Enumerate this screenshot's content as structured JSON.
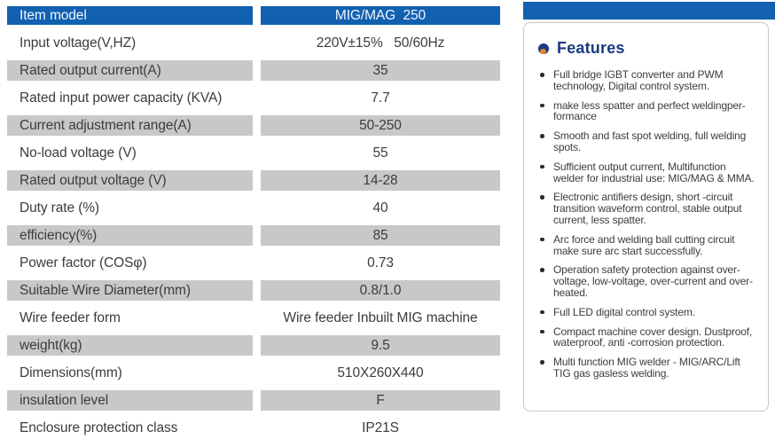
{
  "colors": {
    "header_blue": "#1161b0",
    "row_gray": "#c8c8c8",
    "feature_heading_navy": "#1a3a7f",
    "feature_icon_orange": "#e0862a",
    "text": "#3c3c3c"
  },
  "table": {
    "rows": [
      {
        "label": "Item model",
        "value": "MIG/MAG  250",
        "header": true
      },
      {
        "label": "Input voltage(V,HZ)",
        "value": "220V±15%   50/60Hz"
      },
      {
        "label": "Rated output current(A)",
        "value": "35"
      },
      {
        "label": "Rated input power capacity (KVA)",
        "value": "7.7"
      },
      {
        "label": "Current adjustment range(A)",
        "value": "50-250"
      },
      {
        "label": "No-load voltage (V)",
        "value": "55"
      },
      {
        "label": "Rated output voltage (V)",
        "value": "14-28"
      },
      {
        "label": "Duty rate (%)",
        "value": "40"
      },
      {
        "label": "efficiency(%)",
        "value": "85"
      },
      {
        "label": "Power factor (COSφ)",
        "value": "0.73"
      },
      {
        "label": "Suitable Wire Diameter(mm)",
        "value": "0.8/1.0"
      },
      {
        "label": "Wire feeder form",
        "value": "Wire feeder Inbuilt MIG machine"
      },
      {
        "label": "weight(kg)",
        "value": "9.5"
      },
      {
        "label": "Dimensions(mm)",
        "value": "510X260X440"
      },
      {
        "label": "insulation level",
        "value": "F"
      },
      {
        "label": "Enclosure protection class",
        "value": "IP21S"
      }
    ]
  },
  "features": {
    "title": "Features",
    "items": [
      "Full bridge IGBT converter and PWM technology, Digital control system.",
      "make less spatter and perfect weldingper-formance",
      "Smooth and fast spot welding, full welding spots.",
      "Sufficient output current, Multifunction welder for industrial use: MIG/MAG & MMA.",
      "Electronic antifiers design, short -circuit transition waveform control, stable output current, less spatter.",
      "Arc force and welding ball cutting circuit make sure arc start successfully.",
      "Operation safety protection against over-voltage, low-voltage, over-current and over-heated.",
      "Full LED digital control system.",
      "Compact machine cover design. Dustproof, waterproof, anti -corrosion protection.",
      "Multi function MIG welder - MIG/ARC/Lift TIG gas gasless welding."
    ]
  }
}
